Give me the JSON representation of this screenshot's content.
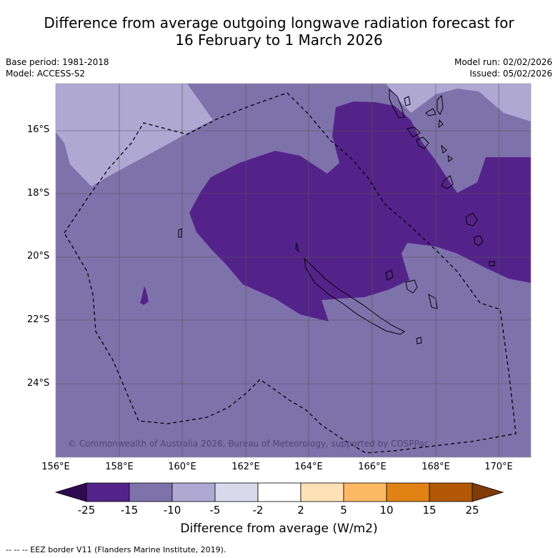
{
  "title_line1": "Difference from average outgoing longwave radiation forecast for",
  "title_line2": "16 February to 1 March 2026",
  "base_period": "Base period: 1981-2018",
  "model": "Model: ACCESS-S2",
  "model_run": "Model run: 02/02/2026",
  "issued": "Issued: 05/02/2026",
  "lat_labels": [
    "16°S",
    "18°S",
    "20°S",
    "22°S",
    "24°S"
  ],
  "lon_labels": [
    "156°E",
    "158°E",
    "160°E",
    "162°E",
    "164°E",
    "166°E",
    "168°E",
    "170°E"
  ],
  "copyright": "© Commonwealth of Australia 2026, Bureau of Meteorology, supported by COSPPac",
  "colorbar": {
    "labels": [
      "-25",
      "-15",
      "-10",
      "-5",
      "-2",
      "2",
      "5",
      "10",
      "15",
      "25"
    ],
    "colors": [
      "#2e0b50",
      "#54238a",
      "#7e72ab",
      "#aea8d3",
      "#d9d9ec",
      "#ffffff",
      "#fee1b6",
      "#fdb863",
      "#e08214",
      "#b35806",
      "#7f3b08"
    ],
    "title": "Difference from average (W/m2)"
  },
  "footnote": "--  --  -- EEZ border V11 (Flanders Marine Institute, 2019)."
}
